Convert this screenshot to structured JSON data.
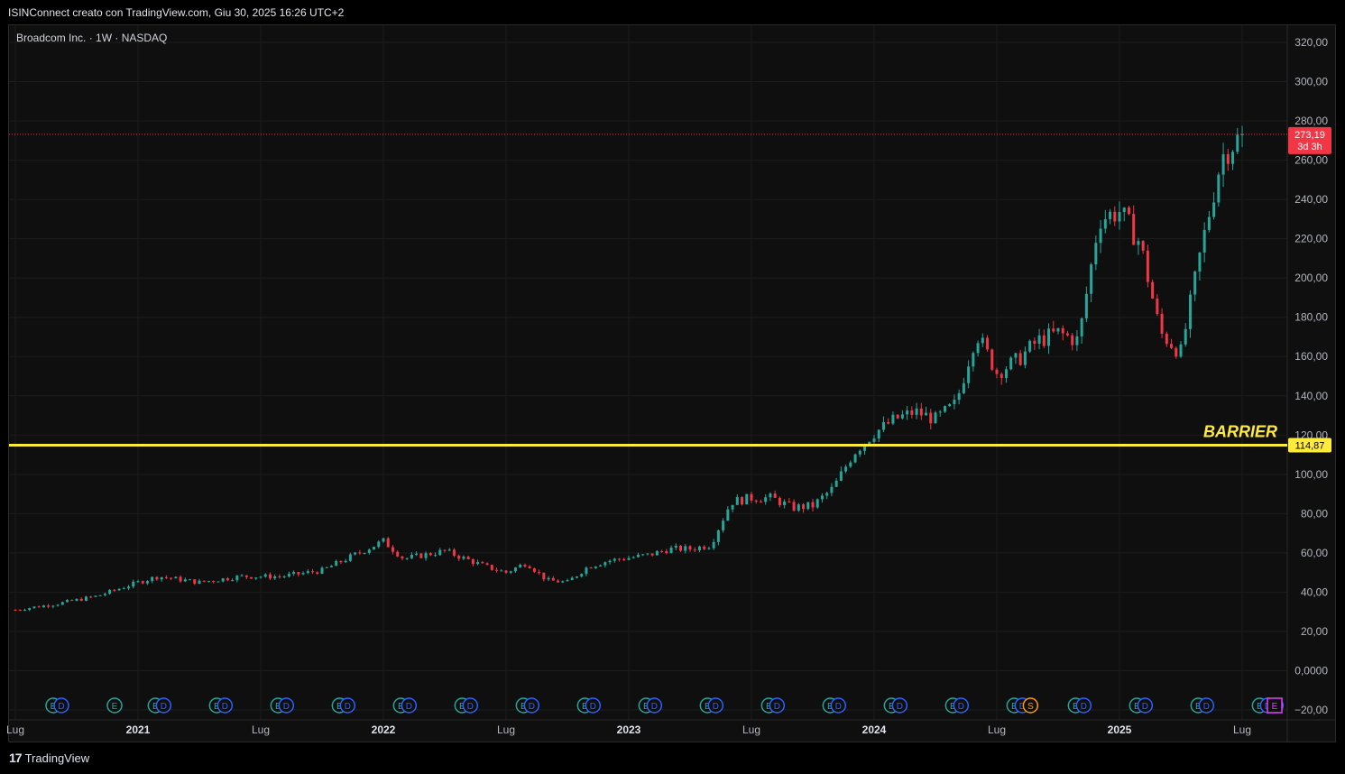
{
  "header": {
    "caption": "ISINConnect creato con TradingView.com, Giu 30, 2025 16:26 UTC+2"
  },
  "footer": {
    "brand": "TradingView",
    "brand_mark": "17"
  },
  "colors": {
    "up": "#26a69a",
    "down": "#f23645",
    "barrier": "#ffeb3b",
    "price_tag": "#f23645",
    "grid": "#1c1c1c",
    "axis_text": "#b2b5be",
    "earnings": "#26a69a",
    "dividend": "#2962ff",
    "split": "#ff9800",
    "upcoming_earnings": "#e040fb"
  },
  "chart_data": {
    "type": "candlestick",
    "symbol_line": "Broadcom Inc. · 1W · NASDAQ",
    "price_axis": {
      "ticks": [
        "320,00",
        "300,00",
        "280,00",
        "260,00",
        "240,00",
        "220,00",
        "200,00",
        "180,00",
        "160,00",
        "140,00",
        "120,00",
        "100,00",
        "80,00",
        "60,00",
        "40,00",
        "20,00",
        "0,0000",
        "−20,00"
      ],
      "tick_values": [
        320,
        300,
        280,
        260,
        240,
        220,
        200,
        180,
        160,
        140,
        120,
        100,
        80,
        60,
        40,
        20,
        0,
        -20
      ],
      "ylim": [
        -20,
        320
      ]
    },
    "time_axis": {
      "labels": [
        "Lug",
        "2021",
        "Lug",
        "2022",
        "Lug",
        "2023",
        "Lug",
        "2024",
        "Lug",
        "2025",
        "Lug"
      ],
      "label_dates": [
        "2020-07",
        "2021-01",
        "2021-07",
        "2022-01",
        "2022-07",
        "2023-01",
        "2023-07",
        "2024-01",
        "2024-07",
        "2025-01",
        "2025-07"
      ],
      "bold": [
        false,
        true,
        false,
        true,
        false,
        true,
        false,
        true,
        false,
        true,
        false
      ]
    },
    "last_price": {
      "value": 273.19,
      "label": "273,19",
      "countdown": "3d 3h"
    },
    "barrier": {
      "value": 114.87,
      "label": "114,87",
      "text": "BARRIER"
    },
    "close_path": [
      [
        "2020-07",
        31
      ],
      [
        "2020-09",
        34
      ],
      [
        "2020-11",
        38
      ],
      [
        "2021-01",
        45
      ],
      [
        "2021-02",
        48
      ],
      [
        "2021-04",
        45
      ],
      [
        "2021-06",
        48
      ],
      [
        "2021-08",
        48
      ],
      [
        "2021-10",
        51
      ],
      [
        "2021-12",
        61
      ],
      [
        "2022-01",
        66
      ],
      [
        "2022-02",
        57
      ],
      [
        "2022-04",
        61
      ],
      [
        "2022-05",
        57
      ],
      [
        "2022-06",
        53
      ],
      [
        "2022-07",
        50
      ],
      [
        "2022-08",
        55
      ],
      [
        "2022-09",
        46
      ],
      [
        "2022-10",
        45
      ],
      [
        "2022-11",
        53
      ],
      [
        "2022-12",
        56
      ],
      [
        "2023-02",
        59
      ],
      [
        "2023-03",
        62
      ],
      [
        "2023-04",
        62
      ],
      [
        "2023-05",
        64
      ],
      [
        "2023-06",
        86
      ],
      [
        "2023-07",
        88
      ],
      [
        "2023-08",
        88
      ],
      [
        "2023-09",
        83
      ],
      [
        "2023-10",
        84
      ],
      [
        "2023-11",
        93
      ],
      [
        "2023-12",
        111
      ],
      [
        "2024-01",
        121
      ],
      [
        "2024-02",
        128
      ],
      [
        "2024-03",
        132
      ],
      [
        "2024-04",
        128
      ],
      [
        "2024-05",
        136
      ],
      [
        "2024-06",
        172
      ],
      [
        "2024-07",
        152
      ],
      [
        "2024-08",
        158
      ],
      [
        "2024-09",
        168
      ],
      [
        "2024-10",
        172
      ],
      [
        "2024-11",
        168
      ],
      [
        "2024-12",
        230
      ],
      [
        "2025-01",
        234
      ],
      [
        "2025-02",
        218
      ],
      [
        "2025-03",
        172
      ],
      [
        "2025-04",
        162
      ],
      [
        "2025-05",
        215
      ],
      [
        "2025-06",
        262
      ],
      [
        "2025-07",
        273.19
      ]
    ],
    "events": [
      {
        "date": "2020-07",
        "kinds": [
          "E",
          "D"
        ]
      },
      {
        "date": "2020-10",
        "kinds": [
          "E"
        ]
      },
      {
        "date": "2020-12",
        "kinds": [
          "E",
          "D"
        ]
      },
      {
        "date": "2021-03",
        "kinds": [
          "E",
          "D"
        ]
      },
      {
        "date": "2021-06",
        "kinds": [
          "E",
          "D"
        ]
      },
      {
        "date": "2021-09",
        "kinds": [
          "E",
          "D"
        ]
      },
      {
        "date": "2021-12",
        "kinds": [
          "E",
          "D"
        ]
      },
      {
        "date": "2022-03",
        "kinds": [
          "E",
          "D"
        ]
      },
      {
        "date": "2022-06",
        "kinds": [
          "E",
          "D"
        ]
      },
      {
        "date": "2022-09",
        "kinds": [
          "E",
          "D"
        ]
      },
      {
        "date": "2022-12",
        "kinds": [
          "E",
          "D"
        ]
      },
      {
        "date": "2023-03",
        "kinds": [
          "E",
          "D"
        ]
      },
      {
        "date": "2023-06",
        "kinds": [
          "E",
          "D"
        ]
      },
      {
        "date": "2023-09",
        "kinds": [
          "E",
          "D"
        ]
      },
      {
        "date": "2023-12",
        "kinds": [
          "E",
          "D"
        ]
      },
      {
        "date": "2024-03",
        "kinds": [
          "E",
          "D"
        ]
      },
      {
        "date": "2024-06",
        "kinds": [
          "E",
          "D",
          "S"
        ]
      },
      {
        "date": "2024-09",
        "kinds": [
          "E",
          "D"
        ]
      },
      {
        "date": "2024-12",
        "kinds": [
          "E",
          "D"
        ]
      },
      {
        "date": "2025-03",
        "kinds": [
          "E",
          "D"
        ]
      },
      {
        "date": "2025-06",
        "kinds": [
          "E",
          "D",
          "D"
        ]
      },
      {
        "date": "2025-09",
        "kinds": [
          "E-upcoming"
        ]
      }
    ]
  }
}
